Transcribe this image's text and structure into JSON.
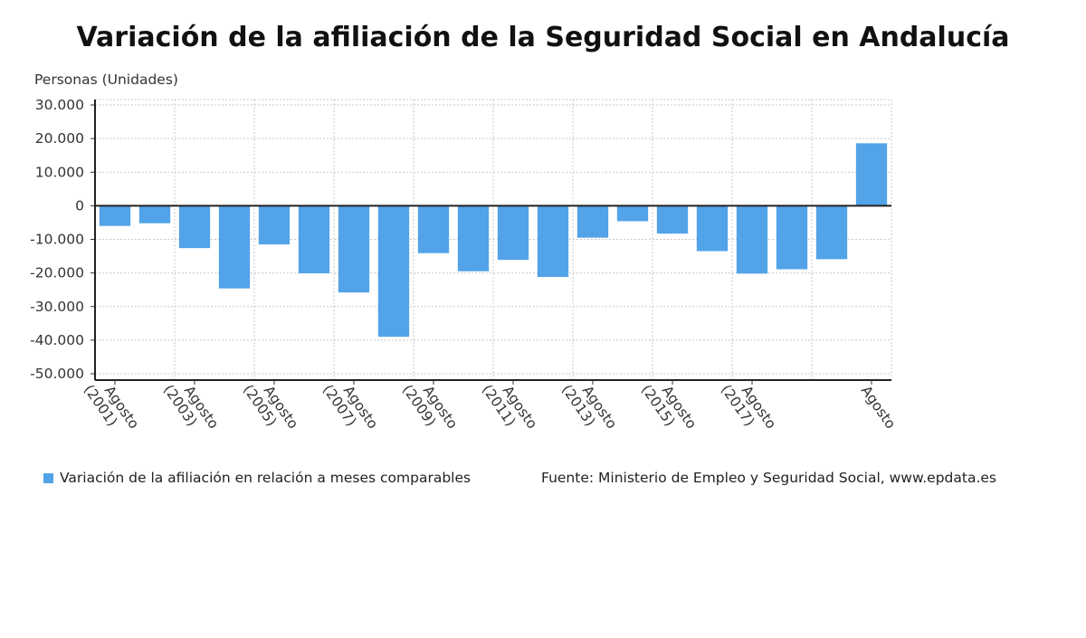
{
  "chart_data": {
    "type": "bar",
    "title": "Variación de la afiliación de la Seguridad Social en Andalucía",
    "ylabel": "Personas (Unidades)",
    "xlabel": "",
    "ylim": [
      -50000,
      30000
    ],
    "yticks": [
      30000,
      20000,
      10000,
      0,
      -10000,
      -20000,
      -30000,
      -40000,
      -50000
    ],
    "ytick_labels": [
      "30.000",
      "20.000",
      "10.000",
      "0",
      "-10.000",
      "-20.000",
      "-30.000",
      "-40.000",
      "-50.000"
    ],
    "categories": [
      "Agosto (2001)",
      "",
      "Agosto (2003)",
      "",
      "Agosto (2005)",
      "",
      "Agosto (2007)",
      "",
      "Agosto (2009)",
      "",
      "Agosto (2011)",
      "",
      "Agosto (2013)",
      "",
      "Agosto (2015)",
      "",
      "Agosto (2017)",
      "",
      "",
      "Agosto"
    ],
    "tick_labels": [
      {
        "line1": "Agosto",
        "line2": "(2001)",
        "index": 0
      },
      {
        "line1": "Agosto",
        "line2": "(2003)",
        "index": 2
      },
      {
        "line1": "Agosto",
        "line2": "(2005)",
        "index": 4
      },
      {
        "line1": "Agosto",
        "line2": "(2007)",
        "index": 6
      },
      {
        "line1": "Agosto",
        "line2": "(2009)",
        "index": 8
      },
      {
        "line1": "Agosto",
        "line2": "(2011)",
        "index": 10
      },
      {
        "line1": "Agosto",
        "line2": "(2013)",
        "index": 12
      },
      {
        "line1": "Agosto",
        "line2": "(2015)",
        "index": 14
      },
      {
        "line1": "Agosto",
        "line2": "(2017)",
        "index": 16
      },
      {
        "line1": "Agosto",
        "line2": "",
        "index": 19
      }
    ],
    "series": [
      {
        "name": "Variación de la afiliación en relación a meses comparables",
        "color": "#52a3e8",
        "values": [
          -6000,
          -5200,
          -12600,
          -24600,
          -11500,
          -20100,
          -25800,
          -39000,
          -14100,
          -19500,
          -16100,
          -21200,
          -9500,
          -4600,
          -8300,
          -13500,
          -20200,
          -18900,
          -15900,
          18600
        ]
      }
    ],
    "grid": true,
    "legend_position": "bottom-left"
  },
  "legend": {
    "label": "Variación de la afiliación en relación a meses comparables",
    "color": "#52a3e8"
  },
  "source": "Fuente: Ministerio de Empleo y Seguridad Social, www.epdata.es"
}
